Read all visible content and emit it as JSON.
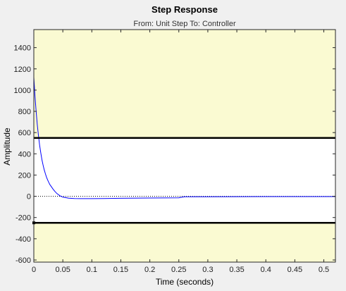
{
  "chart_data": {
    "type": "line",
    "title": "Step Response",
    "subtitle": "From: Unit Step  To: Controller",
    "xlabel": "Time (seconds)",
    "ylabel": "Amplitude",
    "xlim": [
      0,
      0.52
    ],
    "ylim": [
      -620,
      1570
    ],
    "xticks": [
      0,
      0.05,
      0.1,
      0.15,
      0.2,
      0.25,
      0.3,
      0.35,
      0.4,
      0.45,
      0.5
    ],
    "xtick_labels": [
      "0",
      "0.05",
      "0.1",
      "0.15",
      "0.2",
      "0.25",
      "0.3",
      "0.35",
      "0.4",
      "0.45",
      "0.5"
    ],
    "yticks": [
      -600,
      -400,
      -200,
      0,
      200,
      400,
      600,
      800,
      1000,
      1200,
      1400
    ],
    "ytick_labels": [
      "-600",
      "-400",
      "-200",
      "0",
      "200",
      "400",
      "600",
      "800",
      "1000",
      "1200",
      "1400"
    ],
    "constraint_bounds": {
      "upper": 550,
      "lower": -250
    },
    "reference_line": 0,
    "series": [
      {
        "color": "#0000ff",
        "x": [
          0,
          0.002,
          0.004,
          0.006,
          0.008,
          0.01,
          0.012,
          0.014,
          0.016,
          0.018,
          0.02,
          0.022,
          0.024,
          0.026,
          0.028,
          0.03,
          0.033,
          0.036,
          0.04,
          0.045,
          0.05,
          0.06,
          0.07,
          0.08,
          0.1,
          0.12,
          0.15,
          0.2,
          0.25,
          0.26,
          0.3,
          0.4,
          0.5,
          0.52
        ],
        "y": [
          1120,
          945,
          798,
          674,
          570,
          482,
          408,
          345,
          292,
          248,
          210,
          178,
          151,
          128,
          108,
          92,
          68,
          48,
          25,
          5,
          -8,
          -18,
          -21,
          -22,
          -22,
          -21,
          -19,
          -16,
          -14,
          -5,
          -4,
          -3,
          -3,
          -3
        ]
      }
    ],
    "colors": {
      "constraint_region": "#fafad2",
      "feasible_region": "#ffffff",
      "bound_line": "#000000",
      "figure_background": "#f0f0f0"
    },
    "grid": false
  }
}
